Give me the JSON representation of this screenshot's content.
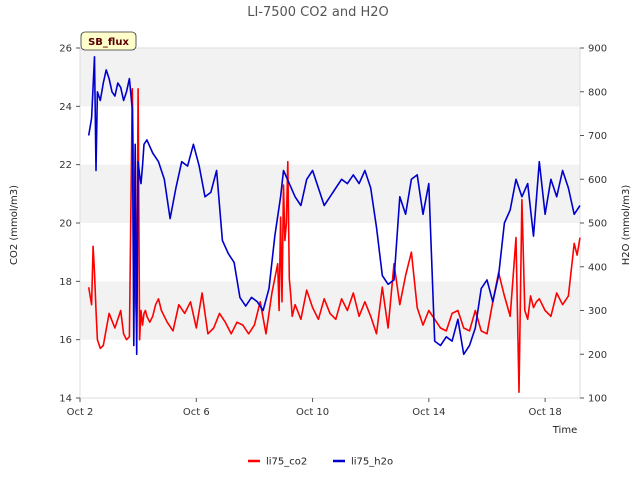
{
  "chart_data": {
    "type": "line",
    "title": "LI-7500 CO2 and H2O",
    "xlabel": "Time",
    "ylabel": "CO2 (mmol/m3)",
    "y2label": "H2O (mmol/m3)",
    "badge": "SB_flux",
    "xlim": [
      2,
      19.2
    ],
    "ylim": [
      14,
      26
    ],
    "y2lim": [
      100,
      900
    ],
    "x_ticks": [
      {
        "value": 2,
        "label": "Oct 2"
      },
      {
        "value": 6,
        "label": "Oct 6"
      },
      {
        "value": 10,
        "label": "Oct 10"
      },
      {
        "value": 14,
        "label": "Oct 14"
      },
      {
        "value": 18,
        "label": "Oct 18"
      }
    ],
    "y_ticks": [
      14,
      16,
      18,
      20,
      22,
      24,
      26
    ],
    "y2_ticks": [
      100,
      200,
      300,
      400,
      500,
      600,
      700,
      800,
      900
    ],
    "bands": [
      [
        16,
        18
      ],
      [
        20,
        22
      ],
      [
        24,
        26
      ]
    ],
    "legend_position": "bottom-center",
    "series": [
      {
        "name": "li75_co2",
        "axis": "left",
        "color": "#ff0000",
        "x": [
          2.3,
          2.4,
          2.45,
          2.5,
          2.55,
          2.6,
          2.7,
          2.8,
          3.0,
          3.2,
          3.4,
          3.5,
          3.6,
          3.7,
          3.8,
          3.9,
          3.95,
          4.0,
          4.05,
          4.1,
          4.15,
          4.2,
          4.25,
          4.3,
          4.4,
          4.5,
          4.6,
          4.7,
          4.8,
          5.0,
          5.2,
          5.4,
          5.6,
          5.8,
          6.0,
          6.2,
          6.4,
          6.6,
          6.8,
          7.0,
          7.2,
          7.4,
          7.6,
          7.8,
          8.0,
          8.2,
          8.4,
          8.6,
          8.8,
          8.85,
          8.9,
          8.95,
          9.0,
          9.05,
          9.1,
          9.15,
          9.2,
          9.25,
          9.3,
          9.4,
          9.6,
          9.8,
          10.0,
          10.2,
          10.4,
          10.6,
          10.8,
          11.0,
          11.2,
          11.4,
          11.6,
          11.8,
          12.0,
          12.2,
          12.4,
          12.6,
          12.8,
          13.0,
          13.2,
          13.4,
          13.6,
          13.8,
          14.0,
          14.2,
          14.4,
          14.6,
          14.8,
          15.0,
          15.2,
          15.4,
          15.6,
          15.8,
          16.0,
          16.2,
          16.4,
          16.6,
          16.8,
          17.0,
          17.1,
          17.2,
          17.3,
          17.4,
          17.5,
          17.6,
          17.7,
          17.8,
          18.0,
          18.2,
          18.4,
          18.6,
          18.8,
          19.0,
          19.1,
          19.2
        ],
        "values": [
          17.8,
          17.2,
          19.2,
          18.3,
          17.0,
          16.0,
          15.7,
          15.8,
          16.9,
          16.4,
          17.0,
          16.2,
          16.0,
          16.1,
          24.6,
          17.8,
          16.3,
          24.6,
          16.0,
          17.0,
          16.5,
          16.9,
          17.0,
          16.8,
          16.6,
          16.8,
          17.2,
          17.4,
          17.0,
          16.6,
          16.3,
          17.2,
          16.9,
          17.3,
          16.4,
          17.6,
          16.2,
          16.4,
          16.9,
          16.6,
          16.2,
          16.6,
          16.5,
          16.2,
          16.5,
          17.3,
          16.2,
          17.6,
          18.6,
          17.0,
          20.2,
          17.3,
          21.3,
          19.4,
          20.0,
          22.1,
          18.1,
          17.5,
          16.8,
          17.2,
          16.7,
          17.7,
          17.1,
          16.7,
          17.4,
          16.9,
          16.7,
          17.4,
          17.0,
          17.6,
          16.8,
          17.3,
          16.8,
          16.2,
          17.8,
          16.4,
          18.6,
          17.2,
          18.2,
          19.0,
          17.1,
          16.5,
          17.0,
          16.7,
          16.4,
          16.3,
          16.9,
          17.0,
          16.4,
          16.3,
          17.0,
          16.3,
          16.2,
          17.3,
          18.3,
          17.5,
          16.8,
          19.5,
          14.2,
          20.8,
          17.0,
          16.7,
          17.5,
          17.1,
          17.3,
          17.4,
          17.0,
          16.8,
          17.6,
          17.2,
          17.5,
          19.3,
          18.9,
          19.5
        ]
      },
      {
        "name": "li75_h2o",
        "axis": "right",
        "color": "#0000cc",
        "x": [
          2.3,
          2.4,
          2.5,
          2.55,
          2.6,
          2.7,
          2.8,
          2.9,
          3.0,
          3.1,
          3.2,
          3.3,
          3.4,
          3.5,
          3.6,
          3.7,
          3.8,
          3.85,
          3.9,
          3.95,
          4.0,
          4.05,
          4.1,
          4.15,
          4.2,
          4.3,
          4.5,
          4.7,
          4.9,
          5.1,
          5.3,
          5.5,
          5.7,
          5.9,
          6.1,
          6.3,
          6.5,
          6.7,
          6.9,
          7.1,
          7.3,
          7.5,
          7.7,
          7.9,
          8.1,
          8.3,
          8.5,
          8.7,
          8.9,
          9.0,
          9.2,
          9.4,
          9.6,
          9.8,
          10.0,
          10.2,
          10.4,
          10.6,
          10.8,
          11.0,
          11.2,
          11.4,
          11.6,
          11.8,
          12.0,
          12.2,
          12.4,
          12.6,
          12.8,
          13.0,
          13.2,
          13.4,
          13.6,
          13.8,
          14.0,
          14.2,
          14.4,
          14.6,
          14.8,
          15.0,
          15.2,
          15.4,
          15.6,
          15.8,
          16.0,
          16.2,
          16.4,
          16.6,
          16.8,
          17.0,
          17.2,
          17.4,
          17.6,
          17.8,
          18.0,
          18.2,
          18.4,
          18.6,
          18.8,
          19.0,
          19.2
        ],
        "values": [
          700,
          740,
          880,
          620,
          800,
          780,
          820,
          850,
          830,
          800,
          790,
          820,
          810,
          780,
          800,
          830,
          760,
          220,
          680,
          200,
          640,
          610,
          590,
          630,
          680,
          690,
          660,
          640,
          600,
          510,
          580,
          640,
          630,
          680,
          630,
          560,
          570,
          620,
          460,
          430,
          410,
          330,
          310,
          330,
          320,
          300,
          350,
          470,
          560,
          620,
          590,
          560,
          540,
          600,
          620,
          580,
          540,
          560,
          580,
          600,
          590,
          610,
          590,
          620,
          580,
          490,
          380,
          360,
          370,
          560,
          520,
          600,
          610,
          520,
          590,
          230,
          220,
          240,
          230,
          280,
          200,
          220,
          260,
          350,
          370,
          320,
          380,
          500,
          530,
          600,
          560,
          590,
          470,
          640,
          520,
          600,
          560,
          620,
          580,
          520,
          540
        ]
      }
    ]
  }
}
